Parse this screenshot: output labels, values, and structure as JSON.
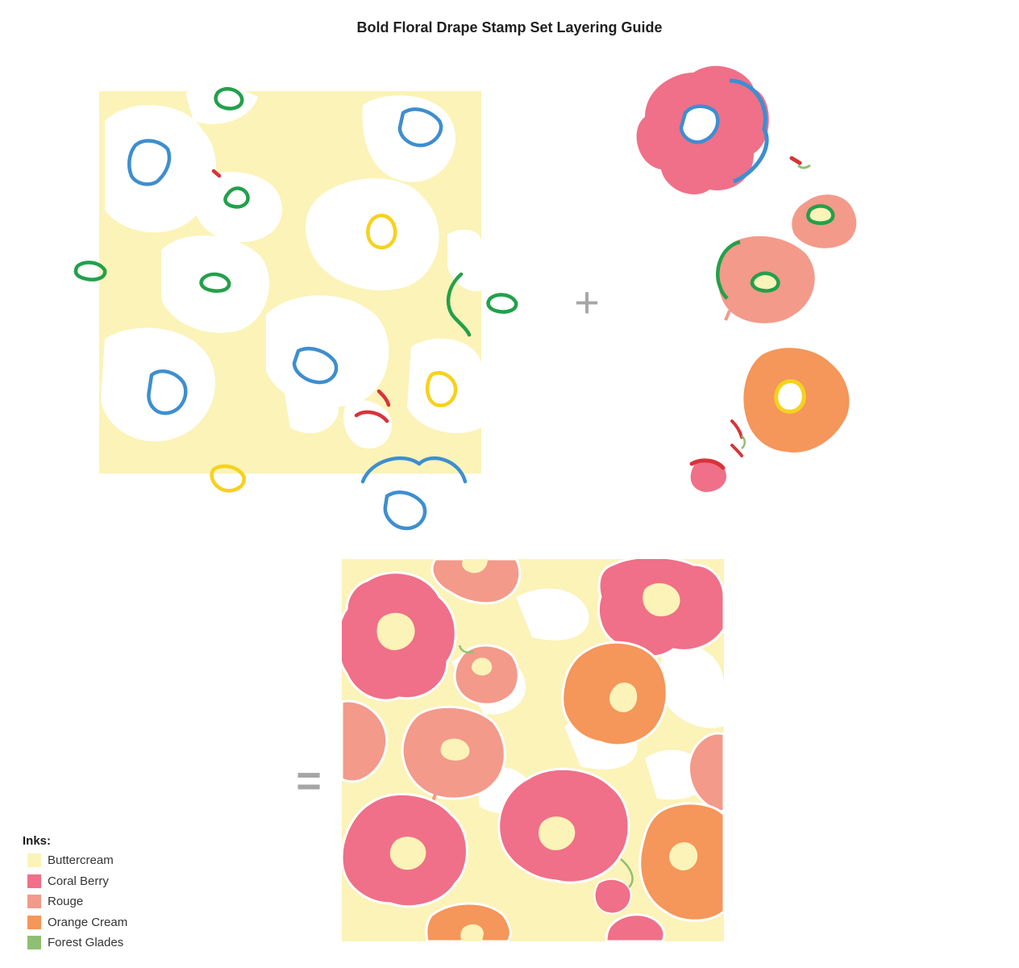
{
  "title": "Bold Floral Drape Stamp Set Layering Guide",
  "operators": {
    "plus": "+",
    "equals": "="
  },
  "legend": {
    "title": "Inks:",
    "items": [
      {
        "name": "Buttercream",
        "color": "#fbf3b8"
      },
      {
        "name": "Coral Berry",
        "color": "#ef7088"
      },
      {
        "name": "Rouge",
        "color": "#f39a8a"
      },
      {
        "name": "Orange Cream",
        "color": "#f5965a"
      },
      {
        "name": "Forest Glades",
        "color": "#8fbf72"
      }
    ]
  },
  "outline_colors": {
    "blue": "#3e8ed0",
    "green": "#23a04a",
    "yellow": "#f7d11e",
    "red": "#d6343a"
  }
}
